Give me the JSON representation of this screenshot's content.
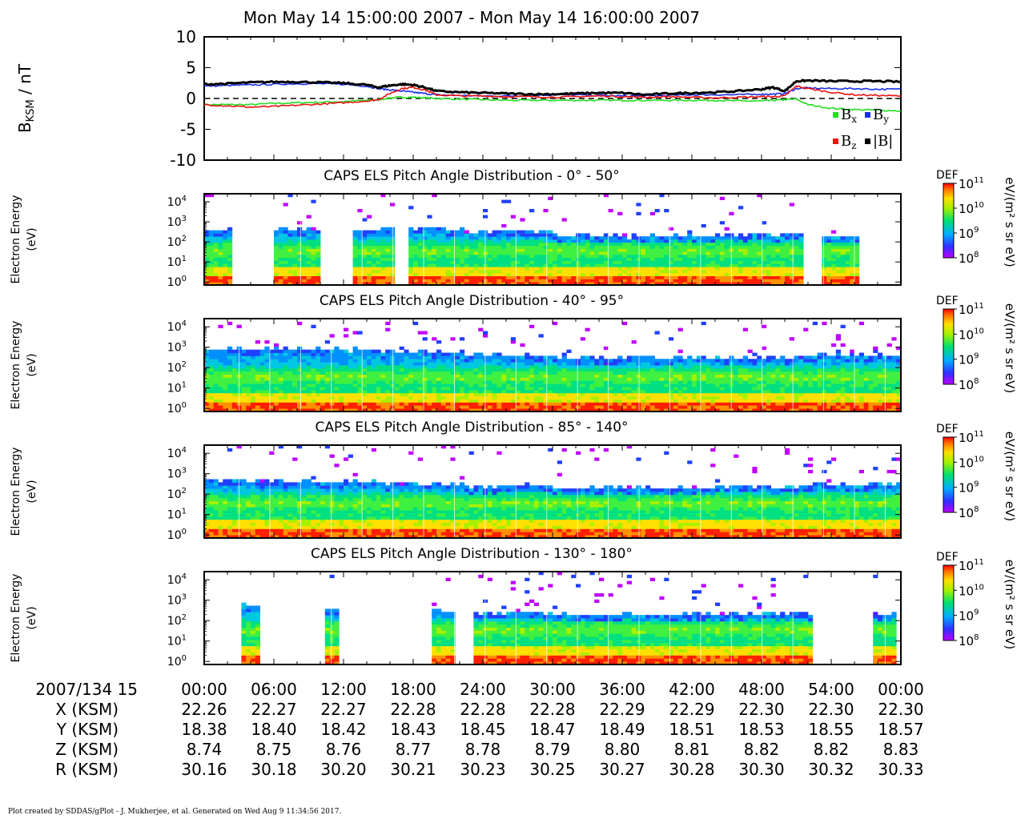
{
  "title": "Mon May 14 15:00:00 2007 - Mon May 14 16:00:00 2007",
  "footer": "Plot created by SDDAS/gPlot - J. Mukherjee, et al.  Generated on Wed Aug 9 11:34:56 2017.",
  "colors": {
    "bx": "#22dd22",
    "by": "#1a2ee6",
    "bz": "#ee1111",
    "bmag": "#000000"
  },
  "chart_data": [
    {
      "type": "line",
      "ylabel_main": "B",
      "ylabel_sub": "KSM",
      "ylabel_unit": " / nT",
      "ylim": [
        -10,
        10
      ],
      "yticks": [
        10,
        5,
        0,
        -5,
        -10
      ],
      "ytick_labels": [
        "10",
        "5",
        "0",
        "-5",
        "-10"
      ],
      "xlim_minutes": [
        0,
        60
      ],
      "zero_line": "dashed",
      "legend_placement": "bottom-right",
      "legend": [
        {
          "main": "B",
          "sub": "x",
          "color": "bx"
        },
        {
          "main": "B",
          "sub": "y",
          "color": "by"
        },
        {
          "main": "B",
          "sub": "z",
          "color": "bz"
        },
        {
          "main": "|B|",
          "sub": "",
          "color": "bmag"
        }
      ],
      "x": [
        0,
        2,
        4,
        6,
        8,
        10,
        12,
        14,
        15,
        16,
        17,
        18,
        19,
        20,
        22,
        24,
        26,
        28,
        30,
        32,
        34,
        36,
        38,
        40,
        42,
        44,
        46,
        48,
        49,
        50,
        51,
        52,
        54,
        56,
        58,
        60
      ],
      "series": [
        {
          "key": "bx",
          "values": [
            -1.0,
            -1.0,
            -1.0,
            -0.8,
            -0.7,
            -0.6,
            -0.5,
            -0.3,
            -0.2,
            0.1,
            0.2,
            0.2,
            0.1,
            0.0,
            -0.1,
            -0.2,
            -0.3,
            -0.3,
            -0.3,
            -0.3,
            -0.3,
            -0.3,
            -0.3,
            -0.3,
            -0.3,
            -0.3,
            -0.4,
            -0.4,
            -0.3,
            -0.2,
            -0.1,
            -1.0,
            -1.6,
            -1.8,
            -1.9,
            -2.0
          ]
        },
        {
          "key": "by",
          "values": [
            2.0,
            2.1,
            2.2,
            2.3,
            2.4,
            2.4,
            2.3,
            2.0,
            1.6,
            1.4,
            1.2,
            1.0,
            0.8,
            0.6,
            0.5,
            0.4,
            0.4,
            0.5,
            0.6,
            0.6,
            0.5,
            0.4,
            0.4,
            0.5,
            0.6,
            0.6,
            0.6,
            0.7,
            0.7,
            0.8,
            1.6,
            1.7,
            1.6,
            1.6,
            1.5,
            1.5
          ]
        },
        {
          "key": "bz",
          "values": [
            -1.0,
            -1.2,
            -1.4,
            -1.3,
            -1.1,
            -0.9,
            -0.7,
            -0.4,
            -0.2,
            0.8,
            1.6,
            1.8,
            1.4,
            0.6,
            0.4,
            0.4,
            0.3,
            0.3,
            0.2,
            0.3,
            0.4,
            0.3,
            0.2,
            0.3,
            0.2,
            0.1,
            0.2,
            0.3,
            0.3,
            0.4,
            2.0,
            1.6,
            1.0,
            0.6,
            0.5,
            0.4
          ]
        },
        {
          "key": "bmag",
          "values": [
            2.3,
            2.4,
            2.6,
            2.7,
            2.7,
            2.6,
            2.5,
            2.2,
            1.8,
            2.1,
            2.3,
            2.2,
            1.8,
            1.2,
            1.0,
            0.9,
            0.8,
            0.7,
            0.7,
            0.8,
            0.9,
            0.9,
            0.6,
            0.8,
            0.9,
            1.0,
            1.2,
            1.5,
            1.8,
            1.2,
            2.8,
            2.9,
            2.8,
            2.8,
            2.8,
            2.7
          ]
        }
      ]
    },
    {
      "type": "heatmap",
      "title": "CAPS ELS Pitch Angle Distribution - 0° - 50°",
      "ylabel_line1": "Electron Energy",
      "ylabel_line2": "(eV)",
      "yscale": "log",
      "ytick_exponents": [
        0,
        1,
        2,
        3,
        4
      ],
      "colorbar_label": "DEF",
      "colorbar_unit": "eV/(m² s sr eV)",
      "colorbar_exponents": [
        11,
        10,
        9,
        8
      ],
      "data_segments_minutes": [
        [
          0,
          2.4
        ],
        [
          6,
          10
        ],
        [
          12.7,
          16.5
        ],
        [
          17.8,
          51.5
        ],
        [
          53.3,
          56.3
        ]
      ],
      "top_energy_log": [
        2.6,
        2.6,
        2.7,
        2.5,
        2.3,
        2.3,
        2.4,
        2.3
      ],
      "sparse_above": true
    },
    {
      "type": "heatmap",
      "title": "CAPS ELS Pitch Angle Distribution - 40° - 95°",
      "ylabel_line1": "Electron Energy",
      "ylabel_line2": "(eV)",
      "yscale": "log",
      "ytick_exponents": [
        0,
        1,
        2,
        3,
        4
      ],
      "colorbar_label": "DEF",
      "colorbar_unit": "eV/(m² s sr eV)",
      "colorbar_exponents": [
        11,
        10,
        9,
        8
      ],
      "data_segments_minutes": [
        [
          0,
          60
        ]
      ],
      "top_energy_log": [
        2.9,
        2.9,
        2.8,
        2.6,
        2.5,
        2.5,
        2.5,
        2.6
      ],
      "sparse_above": true
    },
    {
      "type": "heatmap",
      "title": "CAPS ELS Pitch Angle Distribution - 85° - 140°",
      "ylabel_line1": "Electron Energy",
      "ylabel_line2": "(eV)",
      "yscale": "log",
      "ytick_exponents": [
        0,
        1,
        2,
        3,
        4
      ],
      "colorbar_label": "DEF",
      "colorbar_unit": "eV/(m² s sr eV)",
      "colorbar_exponents": [
        11,
        10,
        9,
        8
      ],
      "data_segments_minutes": [
        [
          0,
          60
        ]
      ],
      "top_energy_log": [
        2.7,
        2.6,
        2.5,
        2.4,
        2.3,
        2.3,
        2.4,
        2.5
      ],
      "sparse_above": true
    },
    {
      "type": "heatmap",
      "title": "CAPS ELS Pitch Angle Distribution - 130° - 180°",
      "ylabel_line1": "Electron Energy",
      "ylabel_line2": "(eV)",
      "yscale": "log",
      "ytick_exponents": [
        0,
        1,
        2,
        3,
        4
      ],
      "colorbar_label": "DEF",
      "colorbar_unit": "eV/(m² s sr eV)",
      "colorbar_exponents": [
        11,
        10,
        9,
        8
      ],
      "data_segments_minutes": [
        [
          3.4,
          4.9
        ],
        [
          10.3,
          11.4
        ],
        [
          19.6,
          21.5
        ],
        [
          23.2,
          52.3
        ],
        [
          57.5,
          59.5
        ]
      ],
      "top_energy_log": [
        2.8,
        2.6,
        2.5,
        2.4,
        2.3,
        2.3,
        2.4,
        2.3
      ],
      "sparse_above": true
    }
  ],
  "ephemeris": {
    "header": "2007/134 15",
    "times": [
      "00:00",
      "06:00",
      "12:00",
      "18:00",
      "24:00",
      "30:00",
      "36:00",
      "42:00",
      "48:00",
      "54:00",
      "00:00"
    ],
    "rows": [
      {
        "label": "X (KSM)",
        "values": [
          "22.26",
          "22.27",
          "22.27",
          "22.28",
          "22.28",
          "22.28",
          "22.29",
          "22.29",
          "22.30",
          "22.30",
          "22.30"
        ]
      },
      {
        "label": "Y (KSM)",
        "values": [
          "18.38",
          "18.40",
          "18.42",
          "18.43",
          "18.45",
          "18.47",
          "18.49",
          "18.51",
          "18.53",
          "18.55",
          "18.57"
        ]
      },
      {
        "label": "Z (KSM)",
        "values": [
          "8.74",
          "8.75",
          "8.76",
          "8.77",
          "8.78",
          "8.79",
          "8.80",
          "8.81",
          "8.82",
          "8.82",
          "8.83"
        ]
      },
      {
        "label": "R (KSM)",
        "values": [
          "30.16",
          "30.18",
          "30.20",
          "30.21",
          "30.23",
          "30.25",
          "30.27",
          "30.28",
          "30.30",
          "30.32",
          "30.33"
        ]
      }
    ]
  }
}
